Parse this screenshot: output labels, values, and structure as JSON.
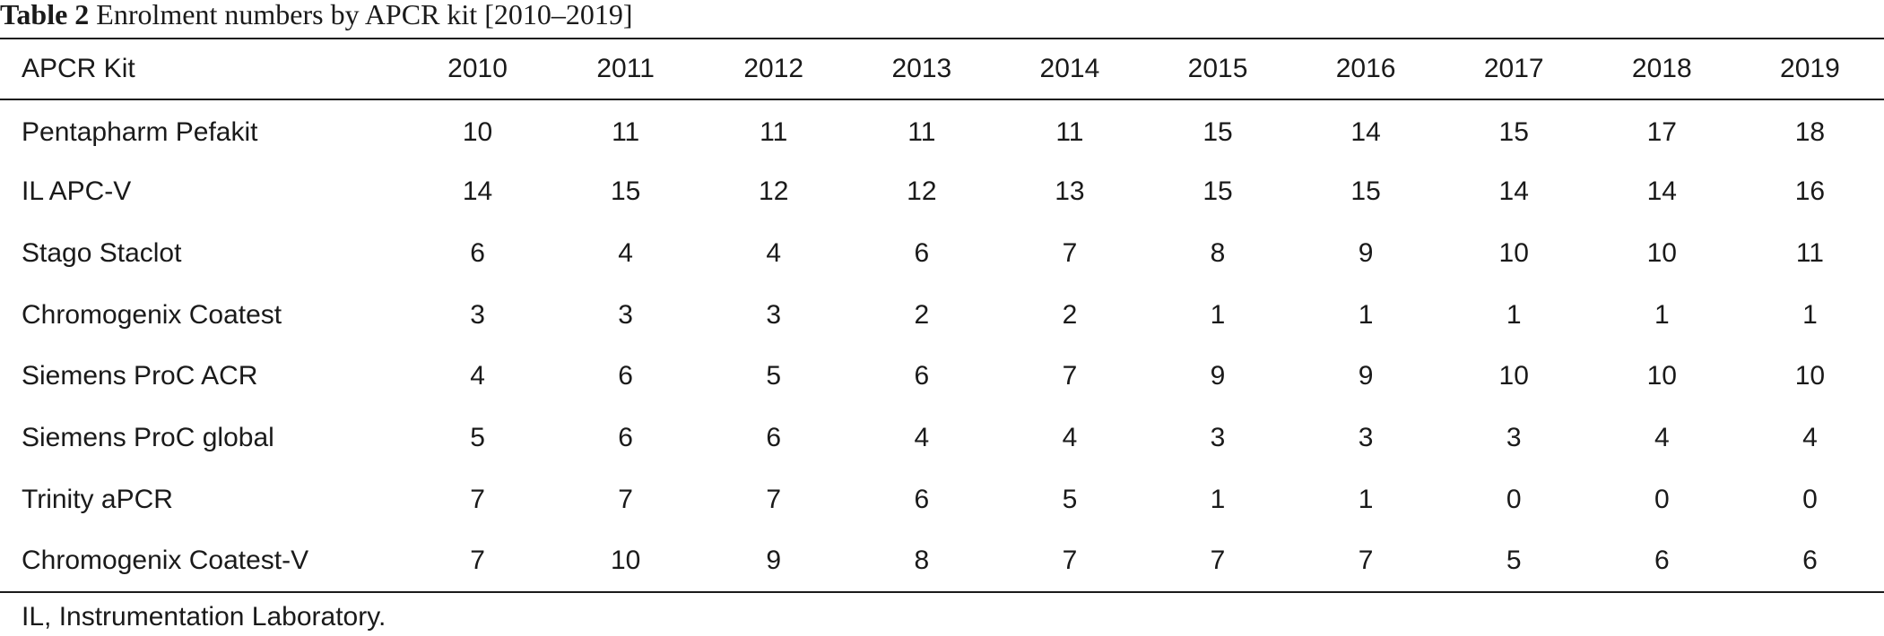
{
  "caption": {
    "label": "Table 2",
    "text": "Enrolment numbers by APCR kit [2010–2019]"
  },
  "table": {
    "kit_header": "APCR Kit",
    "years": [
      "2010",
      "2011",
      "2012",
      "2013",
      "2014",
      "2015",
      "2016",
      "2017",
      "2018",
      "2019"
    ],
    "rows": [
      {
        "kit": "Pentapharm Pefakit",
        "values": [
          "10",
          "11",
          "11",
          "11",
          "11",
          "15",
          "14",
          "15",
          "17",
          "18"
        ]
      },
      {
        "kit": "IL APC-V",
        "values": [
          "14",
          "15",
          "12",
          "12",
          "13",
          "15",
          "15",
          "14",
          "14",
          "16"
        ]
      },
      {
        "kit": "Stago Staclot",
        "values": [
          "6",
          "4",
          "4",
          "6",
          "7",
          "8",
          "9",
          "10",
          "10",
          "11"
        ]
      },
      {
        "kit": "Chromogenix Coatest",
        "values": [
          "3",
          "3",
          "3",
          "2",
          "2",
          "1",
          "1",
          "1",
          "1",
          "1"
        ]
      },
      {
        "kit": "Siemens ProC ACR",
        "values": [
          "4",
          "6",
          "5",
          "6",
          "7",
          "9",
          "9",
          "10",
          "10",
          "10"
        ]
      },
      {
        "kit": "Siemens ProC global",
        "values": [
          "5",
          "6",
          "6",
          "4",
          "4",
          "3",
          "3",
          "3",
          "4",
          "4"
        ]
      },
      {
        "kit": "Trinity aPCR",
        "values": [
          "7",
          "7",
          "7",
          "6",
          "5",
          "1",
          "1",
          "0",
          "0",
          "0"
        ]
      },
      {
        "kit": "Chromogenix Coatest-V",
        "values": [
          "7",
          "10",
          "9",
          "8",
          "7",
          "7",
          "7",
          "5",
          "6",
          "6"
        ]
      }
    ]
  },
  "footnote": "IL, Instrumentation Laboratory."
}
